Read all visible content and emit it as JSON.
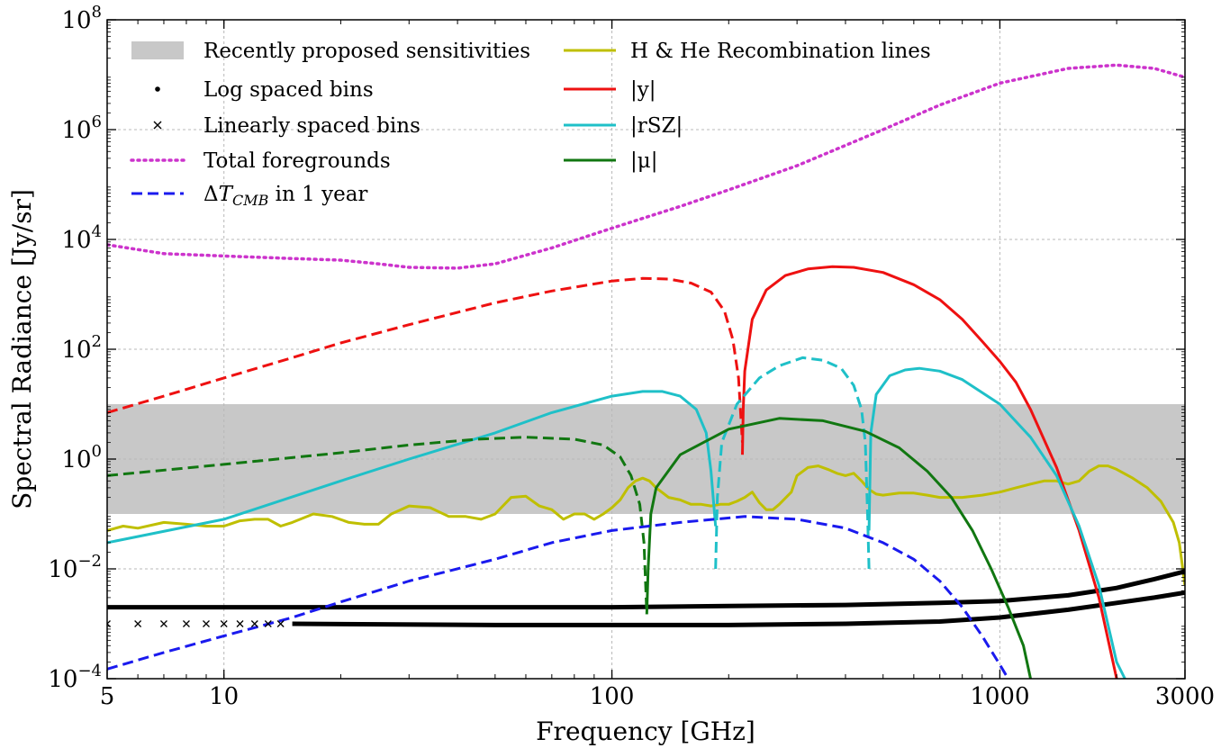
{
  "chart_data": {
    "type": "line",
    "xlabel": "Frequency [GHz]",
    "ylabel": "Spectral Radiance [Jy/sr]",
    "x_scale": "log",
    "y_scale": "log",
    "xlim": [
      5,
      3000
    ],
    "ylim": [
      0.0001,
      100000000
    ],
    "grid": true,
    "legend_placement": "top-left",
    "x_ticks": [
      5,
      10,
      100,
      1000,
      3000
    ],
    "x_tick_labels": [
      "5",
      "10",
      "100",
      "1000",
      "3000"
    ],
    "y_ticks": [
      0.0001,
      0.01,
      1,
      100,
      10000,
      1000000,
      100000000
    ],
    "y_tick_labels": [
      {
        "base": "10",
        "exp": "−4"
      },
      {
        "base": "10",
        "exp": "−2"
      },
      {
        "base": "10",
        "exp": "0"
      },
      {
        "base": "10",
        "exp": "2"
      },
      {
        "base": "10",
        "exp": "4"
      },
      {
        "base": "10",
        "exp": "6"
      },
      {
        "base": "10",
        "exp": "8"
      }
    ],
    "band": {
      "name": "Recently proposed sensitivities",
      "color": "#c8c8c8",
      "ymin": 0.1,
      "ymax": 10
    },
    "series": [
      {
        "name": "Total foregrounds",
        "color": "#cc33cc",
        "style": "dotted",
        "points": [
          [
            5,
            8000
          ],
          [
            7,
            5500
          ],
          [
            10,
            5000
          ],
          [
            15,
            4500
          ],
          [
            20,
            4200
          ],
          [
            25,
            3600
          ],
          [
            30,
            3100
          ],
          [
            40,
            3000
          ],
          [
            50,
            3600
          ],
          [
            70,
            7000
          ],
          [
            100,
            16000
          ],
          [
            150,
            40000
          ],
          [
            200,
            80000
          ],
          [
            300,
            220000
          ],
          [
            500,
            1000000
          ],
          [
            700,
            2800000
          ],
          [
            1000,
            7000000
          ],
          [
            1500,
            13000000
          ],
          [
            2000,
            15000000
          ],
          [
            2500,
            13000000
          ],
          [
            3000,
            9000000
          ]
        ]
      },
      {
        "name": "H & He Recombination lines",
        "color": "#bfbf00",
        "style": "solid",
        "points": [
          [
            5,
            0.05
          ],
          [
            5.5,
            0.06
          ],
          [
            6,
            0.055
          ],
          [
            7,
            0.07
          ],
          [
            8,
            0.065
          ],
          [
            9,
            0.06
          ],
          [
            10,
            0.06
          ],
          [
            11,
            0.075
          ],
          [
            12,
            0.08
          ],
          [
            13,
            0.08
          ],
          [
            14,
            0.06
          ],
          [
            15,
            0.07
          ],
          [
            17,
            0.1
          ],
          [
            19,
            0.09
          ],
          [
            21,
            0.07
          ],
          [
            23,
            0.065
          ],
          [
            25,
            0.065
          ],
          [
            27,
            0.1
          ],
          [
            30,
            0.14
          ],
          [
            34,
            0.13
          ],
          [
            38,
            0.09
          ],
          [
            42,
            0.09
          ],
          [
            46,
            0.08
          ],
          [
            50,
            0.1
          ],
          [
            55,
            0.2
          ],
          [
            60,
            0.21
          ],
          [
            65,
            0.14
          ],
          [
            70,
            0.12
          ],
          [
            75,
            0.08
          ],
          [
            80,
            0.1
          ],
          [
            85,
            0.1
          ],
          [
            90,
            0.08
          ],
          [
            95,
            0.1
          ],
          [
            100,
            0.13
          ],
          [
            105,
            0.18
          ],
          [
            110,
            0.3
          ],
          [
            115,
            0.4
          ],
          [
            120,
            0.45
          ],
          [
            125,
            0.4
          ],
          [
            130,
            0.3
          ],
          [
            140,
            0.2
          ],
          [
            150,
            0.18
          ],
          [
            160,
            0.15
          ],
          [
            170,
            0.15
          ],
          [
            180,
            0.14
          ],
          [
            190,
            0.15
          ],
          [
            200,
            0.15
          ],
          [
            210,
            0.17
          ],
          [
            220,
            0.2
          ],
          [
            230,
            0.25
          ],
          [
            240,
            0.16
          ],
          [
            250,
            0.12
          ],
          [
            260,
            0.12
          ],
          [
            270,
            0.15
          ],
          [
            290,
            0.25
          ],
          [
            300,
            0.5
          ],
          [
            320,
            0.7
          ],
          [
            340,
            0.75
          ],
          [
            360,
            0.65
          ],
          [
            380,
            0.55
          ],
          [
            400,
            0.5
          ],
          [
            420,
            0.55
          ],
          [
            440,
            0.4
          ],
          [
            460,
            0.28
          ],
          [
            480,
            0.23
          ],
          [
            500,
            0.22
          ],
          [
            550,
            0.24
          ],
          [
            600,
            0.24
          ],
          [
            650,
            0.22
          ],
          [
            700,
            0.2
          ],
          [
            800,
            0.2
          ],
          [
            900,
            0.22
          ],
          [
            1000,
            0.25
          ],
          [
            1100,
            0.3
          ],
          [
            1200,
            0.35
          ],
          [
            1300,
            0.4
          ],
          [
            1400,
            0.4
          ],
          [
            1500,
            0.35
          ],
          [
            1600,
            0.4
          ],
          [
            1700,
            0.6
          ],
          [
            1800,
            0.75
          ],
          [
            1900,
            0.75
          ],
          [
            2000,
            0.65
          ],
          [
            2200,
            0.45
          ],
          [
            2400,
            0.3
          ],
          [
            2600,
            0.17
          ],
          [
            2800,
            0.07
          ],
          [
            2900,
            0.03
          ],
          [
            3000,
            0.005
          ]
        ]
      },
      {
        "name": "|y|",
        "color": "#ee1111",
        "style": "solid",
        "points": [
          [
            217,
            1.2
          ],
          [
            218,
            8
          ],
          [
            220,
            40
          ],
          [
            230,
            350
          ],
          [
            250,
            1200
          ],
          [
            280,
            2200
          ],
          [
            320,
            2900
          ],
          [
            370,
            3200
          ],
          [
            420,
            3100
          ],
          [
            500,
            2500
          ],
          [
            600,
            1500
          ],
          [
            700,
            800
          ],
          [
            800,
            350
          ],
          [
            900,
            140
          ],
          [
            1000,
            60
          ],
          [
            1100,
            25
          ],
          [
            1200,
            8
          ],
          [
            1400,
            0.7
          ],
          [
            1600,
            0.05
          ],
          [
            1800,
            0.003
          ],
          [
            2000,
            0.0001
          ]
        ]
      },
      {
        "name": "|y|",
        "color": "#ee1111",
        "style": "dashed",
        "points": [
          [
            5,
            7
          ],
          [
            7,
            14
          ],
          [
            10,
            30
          ],
          [
            15,
            70
          ],
          [
            20,
            130
          ],
          [
            30,
            280
          ],
          [
            50,
            700
          ],
          [
            70,
            1150
          ],
          [
            100,
            1750
          ],
          [
            120,
            1950
          ],
          [
            140,
            1900
          ],
          [
            160,
            1600
          ],
          [
            180,
            1100
          ],
          [
            195,
            500
          ],
          [
            205,
            150
          ],
          [
            212,
            30
          ],
          [
            217,
            2
          ]
        ]
      },
      {
        "name": "|rSZ|",
        "color": "#1fc0c8",
        "style": "solid",
        "points": [
          [
            5,
            0.03
          ],
          [
            10,
            0.08
          ],
          [
            20,
            0.4
          ],
          [
            30,
            1.0
          ],
          [
            50,
            3.0
          ],
          [
            70,
            7
          ],
          [
            100,
            14
          ],
          [
            120,
            17
          ],
          [
            135,
            17
          ],
          [
            150,
            14
          ],
          [
            165,
            8
          ],
          [
            175,
            3
          ],
          [
            180,
            0.6
          ],
          [
            185,
            0.06
          ]
        ]
      },
      {
        "name": "|rSZ|",
        "color": "#1fc0c8",
        "style": "dashed",
        "points": [
          [
            185,
            0.01
          ],
          [
            187,
            0.2
          ],
          [
            192,
            2
          ],
          [
            210,
            10
          ],
          [
            240,
            30
          ],
          [
            270,
            50
          ],
          [
            310,
            70
          ],
          [
            350,
            63
          ],
          [
            390,
            45
          ],
          [
            420,
            22
          ],
          [
            440,
            8
          ],
          [
            450,
            2
          ],
          [
            456,
            0.1
          ],
          [
            460,
            0.01
          ]
        ]
      },
      {
        "name": "|rSZ|",
        "color": "#1fc0c8",
        "style": "solid",
        "points": [
          [
            460,
            0.05
          ],
          [
            465,
            3
          ],
          [
            480,
            15
          ],
          [
            520,
            33
          ],
          [
            570,
            42
          ],
          [
            620,
            45
          ],
          [
            700,
            40
          ],
          [
            800,
            28
          ],
          [
            1000,
            10
          ],
          [
            1200,
            2.5
          ],
          [
            1400,
            0.5
          ],
          [
            1600,
            0.06
          ],
          [
            1800,
            0.005
          ],
          [
            2000,
            0.0002
          ],
          [
            2100,
            0.0001
          ]
        ]
      },
      {
        "name": "|μ|",
        "color": "#117711",
        "style": "solid",
        "points": [
          [
            123,
            0.0015
          ],
          [
            124,
            0.01
          ],
          [
            126,
            0.1
          ],
          [
            130,
            0.3
          ],
          [
            150,
            1.2
          ],
          [
            200,
            3.5
          ],
          [
            270,
            5.5
          ],
          [
            350,
            5.0
          ],
          [
            450,
            3.2
          ],
          [
            550,
            1.6
          ],
          [
            650,
            0.6
          ],
          [
            750,
            0.2
          ],
          [
            850,
            0.05
          ],
          [
            950,
            0.01
          ],
          [
            1050,
            0.002
          ],
          [
            1150,
            0.0004
          ],
          [
            1200,
            0.0001
          ]
        ]
      },
      {
        "name": "|μ|",
        "color": "#117711",
        "style": "dashed",
        "points": [
          [
            5,
            0.5
          ],
          [
            10,
            0.8
          ],
          [
            20,
            1.3
          ],
          [
            30,
            1.8
          ],
          [
            45,
            2.3
          ],
          [
            60,
            2.5
          ],
          [
            80,
            2.3
          ],
          [
            95,
            1.8
          ],
          [
            105,
            1.1
          ],
          [
            112,
            0.5
          ],
          [
            118,
            0.15
          ],
          [
            121,
            0.03
          ],
          [
            123,
            0.0015
          ]
        ]
      },
      {
        "name": "ΔT_CMB in 1 year",
        "color": "#1a1aee",
        "style": "dashed",
        "points": [
          [
            5,
            0.00015
          ],
          [
            7,
            0.0003
          ],
          [
            10,
            0.0006
          ],
          [
            15,
            0.0013
          ],
          [
            20,
            0.0025
          ],
          [
            30,
            0.006
          ],
          [
            50,
            0.015
          ],
          [
            70,
            0.03
          ],
          [
            100,
            0.05
          ],
          [
            150,
            0.07
          ],
          [
            220,
            0.09
          ],
          [
            300,
            0.08
          ],
          [
            400,
            0.055
          ],
          [
            500,
            0.03
          ],
          [
            600,
            0.015
          ],
          [
            700,
            0.006
          ],
          [
            800,
            0.002
          ],
          [
            900,
            0.0006
          ],
          [
            1000,
            0.00018
          ],
          [
            1050,
            0.0001
          ]
        ]
      },
      {
        "name": "Log spaced bins",
        "color": "#000000",
        "style": "thick",
        "points": [
          [
            5,
            0.002
          ],
          [
            20,
            0.002
          ],
          [
            50,
            0.002
          ],
          [
            100,
            0.002
          ],
          [
            200,
            0.0021
          ],
          [
            400,
            0.0022
          ],
          [
            700,
            0.0024
          ],
          [
            1000,
            0.0026
          ],
          [
            1500,
            0.0033
          ],
          [
            2000,
            0.0045
          ],
          [
            2500,
            0.0065
          ],
          [
            3000,
            0.009
          ]
        ]
      },
      {
        "name": "Linearly spaced bins",
        "color": "#000000",
        "style": "thick",
        "points": [
          [
            15,
            0.001
          ],
          [
            50,
            0.00095
          ],
          [
            100,
            0.00095
          ],
          [
            200,
            0.00095
          ],
          [
            400,
            0.001
          ],
          [
            700,
            0.0011
          ],
          [
            1000,
            0.0013
          ],
          [
            1500,
            0.0018
          ],
          [
            2000,
            0.0024
          ],
          [
            2500,
            0.003
          ],
          [
            3000,
            0.0037
          ]
        ]
      }
    ],
    "linear_bin_markers": [
      5,
      6,
      7,
      8,
      9,
      10,
      11,
      12,
      13,
      14
    ],
    "legend": {
      "col1": [
        {
          "label": "Recently proposed sensitivities",
          "symbol": "band",
          "color": "#c8c8c8"
        },
        {
          "label": "Log spaced bins",
          "symbol": "dot",
          "color": "#000000"
        },
        {
          "label": "Linearly spaced bins",
          "symbol": "x",
          "color": "#000000"
        },
        {
          "label": "Total foregrounds",
          "symbol": "dotted",
          "color": "#cc33cc"
        },
        {
          "label_pre": "Δ",
          "label_T": "T",
          "label_sub": "CMB",
          "label_post": " in 1 year",
          "symbol": "dashed",
          "color": "#1a1aee"
        }
      ],
      "col2": [
        {
          "label": "H & He Recombination lines",
          "symbol": "solid",
          "color": "#bfbf00"
        },
        {
          "label": "|y|",
          "symbol": "solid",
          "color": "#ee1111"
        },
        {
          "label": "|rSZ|",
          "symbol": "solid",
          "color": "#1fc0c8"
        },
        {
          "label": "|μ|",
          "symbol": "solid",
          "color": "#117711"
        }
      ]
    }
  }
}
